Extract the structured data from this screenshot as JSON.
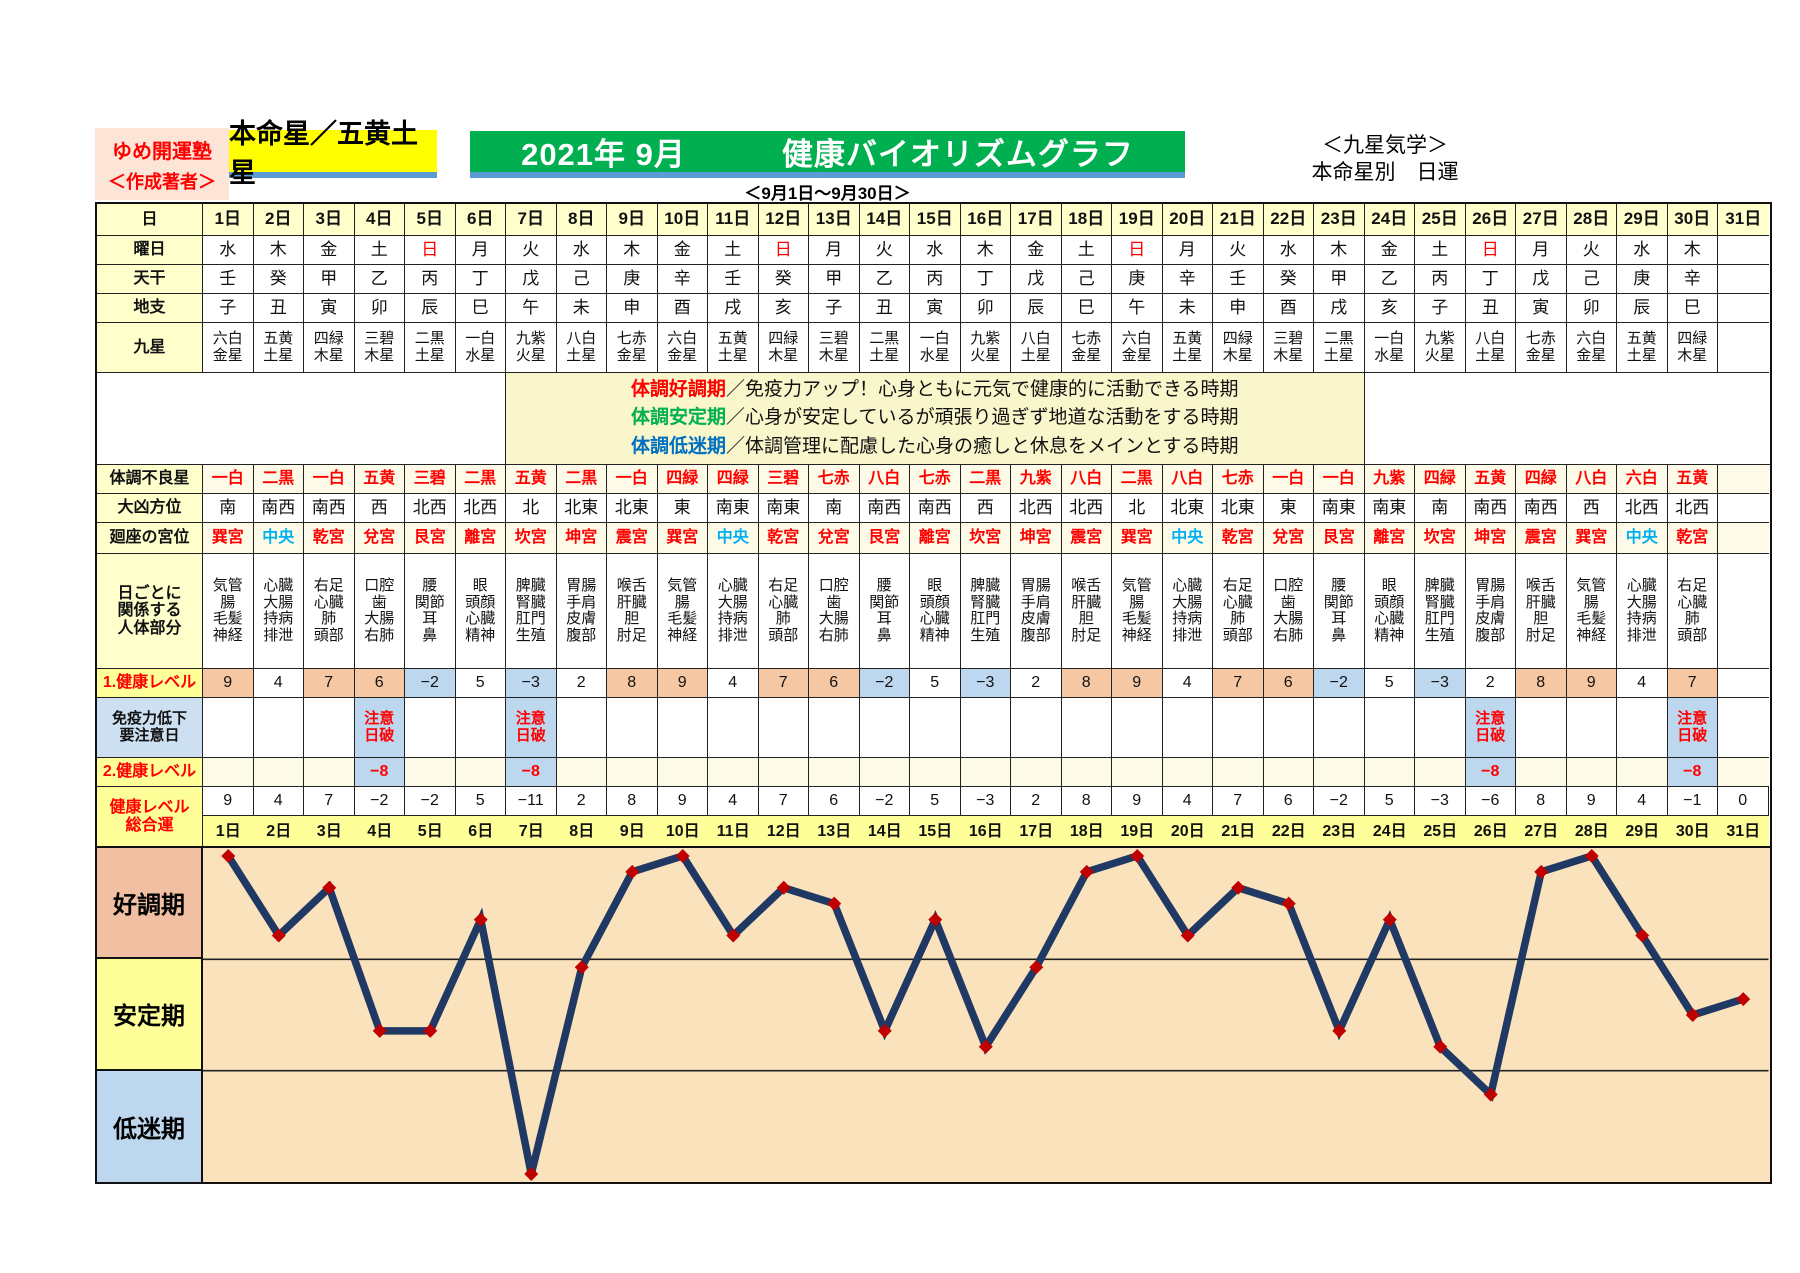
{
  "header": {
    "brand": "ゆめ開運塾",
    "author": "＜作成著者＞",
    "honmeisei": "本命星／五黄土星",
    "title": "2021年 9月　　　健康バイオリズムグラフ",
    "subtitle": "＜9月1日～9月30日＞",
    "school": "＜九星気学＞\n本命星別　日運"
  },
  "legend": {
    "items": [
      {
        "term": "体調好調期",
        "color": "#FF0000",
        "desc": "／免疫力アップ！心身ともに元気で健康的に活動できる時期"
      },
      {
        "term": "体調安定期",
        "color": "#00B050",
        "desc": "／心身が安定しているが頑張り過ぎず地道な活動をする時期"
      },
      {
        "term": "体調低迷期",
        "color": "#0070C0",
        "desc": "／体調管理に配慮した心身の癒しと休息をメインとする時期"
      }
    ]
  },
  "table": {
    "labels": {
      "day": "日",
      "weekday": "曜日",
      "tenkan": "天干",
      "chishi": "地支",
      "kyusei": "九星",
      "furyo": "体調不良星",
      "hoi": "大凶方位",
      "kyui": "廻座の宮位",
      "body": "日ごとに\n関係する\n人体部分",
      "level1": "1.健康レベル",
      "menneki": "免疫力低下\n要注意日",
      "level2": "2.健康レベル",
      "sogo": "健康レベル\n総合運"
    },
    "days": [
      "1日",
      "2日",
      "3日",
      "4日",
      "5日",
      "6日",
      "7日",
      "8日",
      "9日",
      "10日",
      "11日",
      "12日",
      "13日",
      "14日",
      "15日",
      "16日",
      "17日",
      "18日",
      "19日",
      "20日",
      "21日",
      "22日",
      "23日",
      "24日",
      "25日",
      "26日",
      "27日",
      "28日",
      "29日",
      "30日",
      "31日"
    ],
    "weekday": [
      "水",
      "木",
      "金",
      "土",
      "日",
      "月",
      "火",
      "水",
      "木",
      "金",
      "土",
      "日",
      "月",
      "火",
      "水",
      "木",
      "金",
      "土",
      "日",
      "月",
      "火",
      "水",
      "木",
      "金",
      "土",
      "日",
      "月",
      "火",
      "水",
      "木",
      ""
    ],
    "tenkan": [
      "壬",
      "癸",
      "甲",
      "乙",
      "丙",
      "丁",
      "戊",
      "己",
      "庚",
      "辛",
      "壬",
      "癸",
      "甲",
      "乙",
      "丙",
      "丁",
      "戊",
      "己",
      "庚",
      "辛",
      "壬",
      "癸",
      "甲",
      "乙",
      "丙",
      "丁",
      "戊",
      "己",
      "庚",
      "辛",
      ""
    ],
    "chishi": [
      "子",
      "丑",
      "寅",
      "卯",
      "辰",
      "巳",
      "午",
      "未",
      "申",
      "酉",
      "戌",
      "亥",
      "子",
      "丑",
      "寅",
      "卯",
      "辰",
      "巳",
      "午",
      "未",
      "申",
      "酉",
      "戌",
      "亥",
      "子",
      "丑",
      "寅",
      "卯",
      "辰",
      "巳",
      ""
    ],
    "kyusei": [
      "六白\n金星",
      "五黄\n土星",
      "四緑\n木星",
      "三碧\n木星",
      "二黒\n土星",
      "一白\n水星",
      "九紫\n火星",
      "八白\n土星",
      "七赤\n金星",
      "六白\n金星",
      "五黄\n土星",
      "四緑\n木星",
      "三碧\n木星",
      "二黒\n土星",
      "一白\n水星",
      "九紫\n火星",
      "八白\n土星",
      "七赤\n金星",
      "六白\n金星",
      "五黄\n土星",
      "四緑\n木星",
      "三碧\n木星",
      "二黒\n土星",
      "一白\n水星",
      "九紫\n火星",
      "八白\n土星",
      "七赤\n金星",
      "六白\n金星",
      "五黄\n土星",
      "四緑\n木星",
      ""
    ],
    "furyo": [
      "一白",
      "二黒",
      "一白",
      "五黄",
      "三碧",
      "二黒",
      "五黄",
      "二黒",
      "一白",
      "四緑",
      "四緑",
      "三碧",
      "七赤",
      "八白",
      "七赤",
      "二黒",
      "九紫",
      "八白",
      "二黒",
      "八白",
      "七赤",
      "一白",
      "一白",
      "九紫",
      "四緑",
      "五黄",
      "四緑",
      "八白",
      "六白",
      "五黄",
      ""
    ],
    "hoi": [
      "南",
      "南西",
      "南西",
      "西",
      "北西",
      "北西",
      "北",
      "北東",
      "北東",
      "東",
      "南東",
      "南東",
      "南",
      "南西",
      "南西",
      "西",
      "北西",
      "北西",
      "北",
      "北東",
      "北東",
      "東",
      "南東",
      "南東",
      "南",
      "南西",
      "南西",
      "西",
      "北西",
      "北西",
      ""
    ],
    "kyui": [
      "巽宮",
      "中央",
      "乾宮",
      "兌宮",
      "艮宮",
      "離宮",
      "坎宮",
      "坤宮",
      "震宮",
      "巽宮",
      "中央",
      "乾宮",
      "兌宮",
      "艮宮",
      "離宮",
      "坎宮",
      "坤宮",
      "震宮",
      "巽宮",
      "中央",
      "乾宮",
      "兌宮",
      "艮宮",
      "離宮",
      "坎宮",
      "坤宮",
      "震宮",
      "巽宮",
      "中央",
      "乾宮",
      ""
    ],
    "body": [
      "気管\n腸\n毛髪\n神経",
      "心臓\n大腸\n持病\n排泄",
      "右足\n心臓\n肺\n頭部",
      "口腔\n歯\n大腸\n右肺",
      "腰\n関節\n耳\n鼻",
      "眼\n頭顔\n心臓\n精神",
      "脾臓\n腎臓\n肛門\n生殖",
      "胃腸\n手肩\n皮膚\n腹部",
      "喉舌\n肝臓\n胆\n肘足",
      "気管\n腸\n毛髪\n神経",
      "心臓\n大腸\n持病\n排泄",
      "右足\n心臓\n肺\n頭部",
      "口腔\n歯\n大腸\n右肺",
      "腰\n関節\n耳\n鼻",
      "眼\n頭顔\n心臓\n精神",
      "脾臓\n腎臓\n肛門\n生殖",
      "胃腸\n手肩\n皮膚\n腹部",
      "喉舌\n肝臓\n胆\n肘足",
      "気管\n腸\n毛髪\n神経",
      "心臓\n大腸\n持病\n排泄",
      "右足\n心臓\n肺\n頭部",
      "口腔\n歯\n大腸\n右肺",
      "腰\n関節\n耳\n鼻",
      "眼\n頭顔\n心臓\n精神",
      "脾臓\n腎臓\n肛門\n生殖",
      "胃腸\n手肩\n皮膚\n腹部",
      "喉舌\n肝臓\n胆\n肘足",
      "気管\n腸\n毛髪\n神経",
      "心臓\n大腸\n持病\n排泄",
      "右足\n心臓\n肺\n頭部",
      ""
    ],
    "level1": [
      9,
      4,
      7,
      6,
      -2,
      5,
      -3,
      2,
      8,
      9,
      4,
      7,
      6,
      -2,
      5,
      -3,
      2,
      8,
      9,
      4,
      7,
      6,
      -2,
      5,
      -3,
      2,
      8,
      9,
      4,
      7,
      null
    ],
    "caution_text": "注意\n日破",
    "caution_days": [
      4,
      7,
      26,
      30
    ],
    "level2_value": -8,
    "sogo": [
      9,
      4,
      7,
      -2,
      -2,
      5,
      -11,
      2,
      8,
      9,
      4,
      7,
      6,
      -2,
      5,
      -3,
      2,
      8,
      9,
      4,
      7,
      6,
      -2,
      5,
      -3,
      -6,
      8,
      9,
      4,
      -1,
      0
    ]
  },
  "chart_data": {
    "type": "line",
    "title": "2021年9月 健康バイオリズムグラフ（健康レベル総合運）",
    "categories": [
      "1日",
      "2日",
      "3日",
      "4日",
      "5日",
      "6日",
      "7日",
      "8日",
      "9日",
      "10日",
      "11日",
      "12日",
      "13日",
      "14日",
      "15日",
      "16日",
      "17日",
      "18日",
      "19日",
      "20日",
      "21日",
      "22日",
      "23日",
      "24日",
      "25日",
      "26日",
      "27日",
      "28日",
      "29日",
      "30日",
      "31日"
    ],
    "values": [
      9,
      4,
      7,
      -2,
      -2,
      5,
      -11,
      2,
      8,
      9,
      4,
      7,
      6,
      -2,
      5,
      -3,
      2,
      8,
      9,
      4,
      7,
      6,
      -2,
      5,
      -3,
      -6,
      8,
      9,
      4,
      -1,
      0
    ],
    "ylim": [
      -11.5,
      9.5
    ],
    "zone_boundaries": [
      2.5,
      -4.5
    ],
    "zones": [
      {
        "label": "好調期",
        "color": "#F1BFA2"
      },
      {
        "label": "安定期",
        "color": "#FFFF99"
      },
      {
        "label": "低迷期",
        "color": "#BDD7EE"
      }
    ],
    "grid": "zone-lines-only",
    "legend_position": "left",
    "line_color": "#1F3864",
    "marker": "diamond",
    "marker_color": "#C00000",
    "plot_bg": "#FAE3BC"
  }
}
